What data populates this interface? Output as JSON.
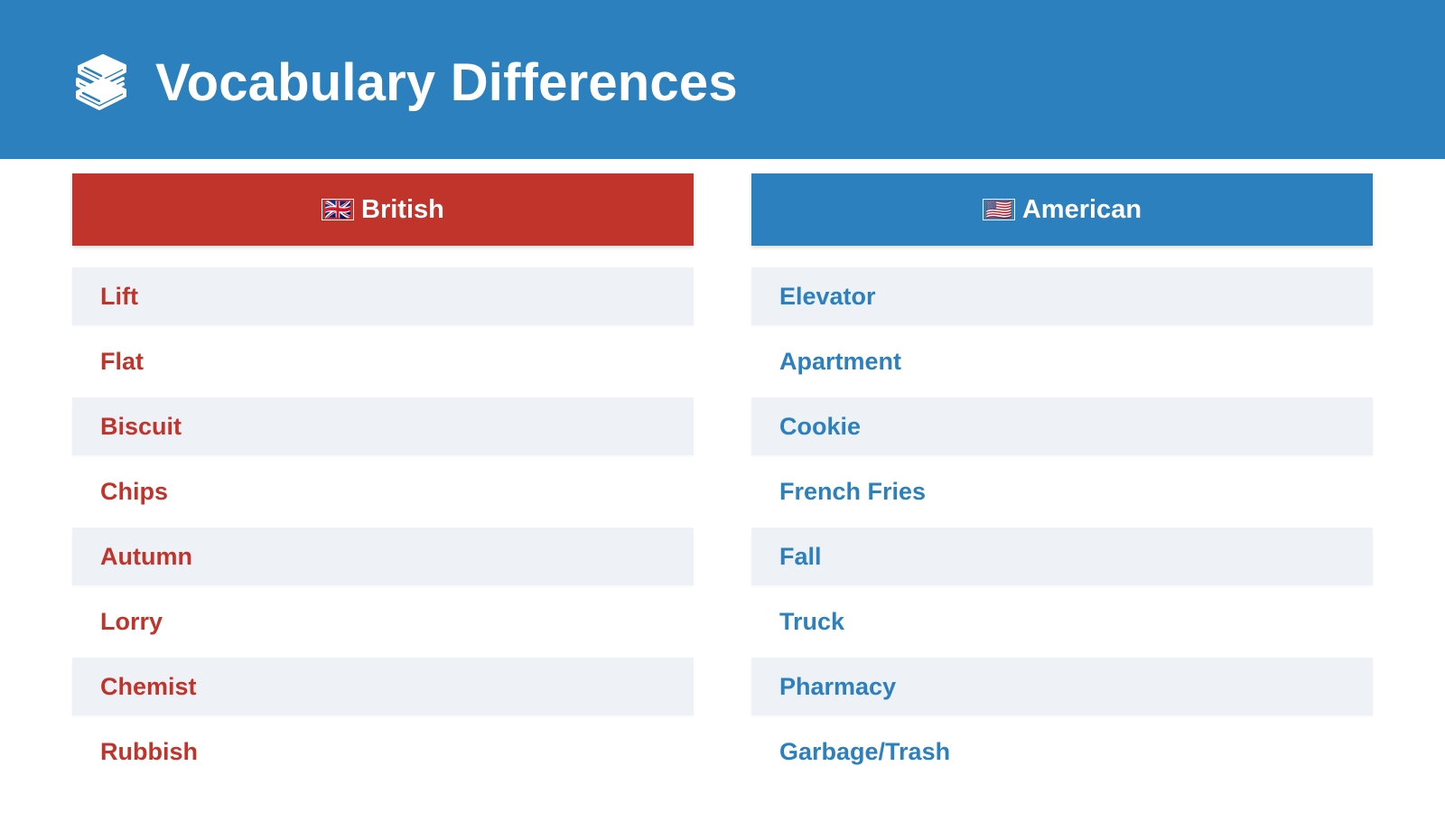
{
  "header": {
    "title": "Vocabulary Differences",
    "icon": "books-icon",
    "background": "#2b80bd"
  },
  "british": {
    "flag": "🇬🇧",
    "label": "British",
    "color": "#c0342b",
    "words": [
      "Lift",
      "Flat",
      "Biscuit",
      "Chips",
      "Autumn",
      "Lorry",
      "Chemist",
      "Rubbish"
    ]
  },
  "american": {
    "flag": "🇺🇸",
    "label": "American",
    "color": "#2b80bd",
    "words": [
      "Elevator",
      "Apartment",
      "Cookie",
      "French Fries",
      "Fall",
      "Truck",
      "Pharmacy",
      "Garbage/Trash"
    ]
  }
}
